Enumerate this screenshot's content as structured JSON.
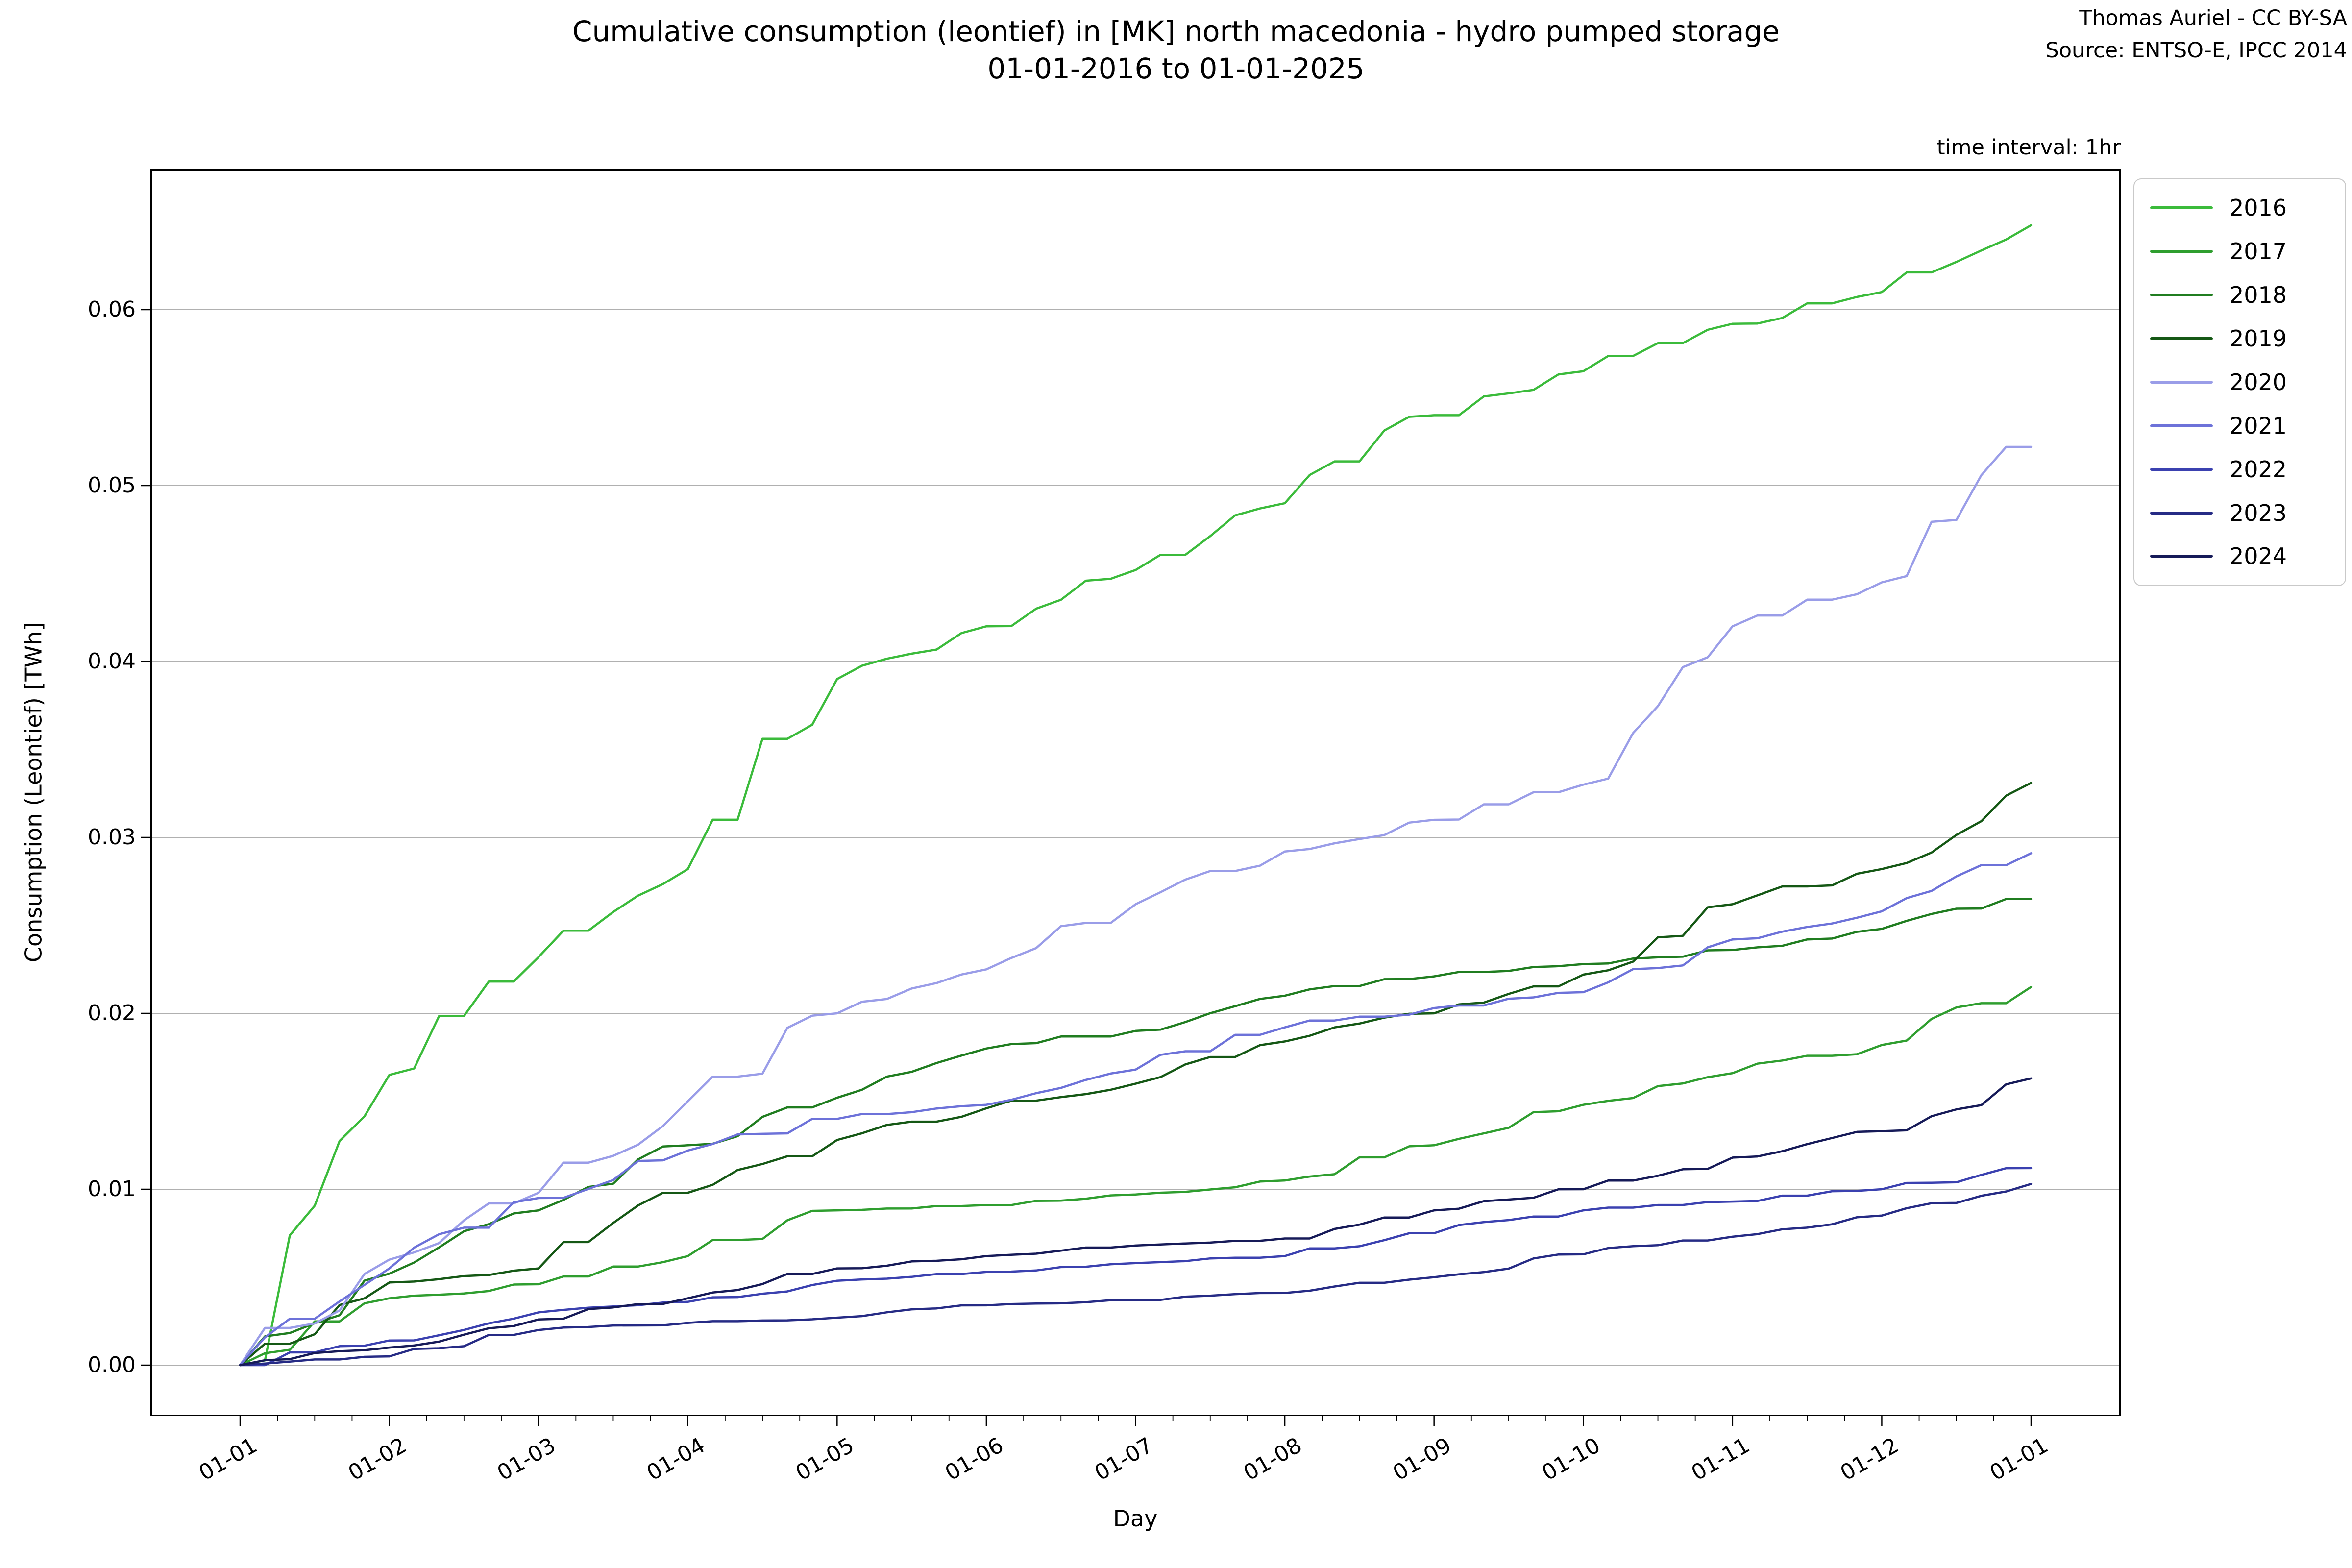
{
  "page": {
    "title_line1": "Cumulative consumption (leontief) in [MK] north macedonia - hydro pumped storage",
    "title_line2": "01-01-2016 to 01-01-2025",
    "attribution_line1": "Thomas Auriel - CC BY-SA",
    "attribution_line2": "Source: ENTSO-E, IPCC 2014",
    "time_interval_label": "time interval: 1hr"
  },
  "chart_data": {
    "type": "line",
    "title": "Cumulative consumption (leontief) in [MK] north macedonia - hydro pumped storage 01-01-2016 to 01-01-2025",
    "xlabel": "Day",
    "ylabel": "Consumption (Leontief) [TWh]",
    "x_tick_labels": [
      "01-01",
      "01-02",
      "01-03",
      "01-04",
      "01-05",
      "01-06",
      "01-07",
      "01-08",
      "01-09",
      "01-10",
      "01-11",
      "01-12",
      "01-01"
    ],
    "y_tick_labels": [
      "0.00",
      "0.01",
      "0.02",
      "0.03",
      "0.04",
      "0.05",
      "0.06"
    ],
    "y_tick_values": [
      0.0,
      0.01,
      0.02,
      0.03,
      0.04,
      0.05,
      0.06
    ],
    "ylim": [
      -0.0032,
      0.068
    ],
    "grid": true,
    "grid_color": "#b0b0b0",
    "legend_position": "upper right outside",
    "series": [
      {
        "name": "2016",
        "color": "#3bbb3b",
        "monthly_values": [
          0,
          0.0165,
          0.0232,
          0.0282,
          0.039,
          0.042,
          0.0452,
          0.049,
          0.054,
          0.0565,
          0.0592,
          0.061,
          0.0648
        ]
      },
      {
        "name": "2017",
        "color": "#2f9e2f",
        "monthly_values": [
          0,
          0.0038,
          0.0046,
          0.0062,
          0.0088,
          0.0091,
          0.0097,
          0.0105,
          0.0125,
          0.0148,
          0.0166,
          0.0182,
          0.0215
        ]
      },
      {
        "name": "2018",
        "color": "#207d20",
        "monthly_values": [
          0,
          0.0052,
          0.0088,
          0.0125,
          0.0152,
          0.018,
          0.019,
          0.021,
          0.0221,
          0.0228,
          0.0236,
          0.0248,
          0.0265
        ]
      },
      {
        "name": "2019",
        "color": "#155815",
        "monthly_values": [
          0,
          0.0047,
          0.0055,
          0.0098,
          0.0128,
          0.0146,
          0.016,
          0.0184,
          0.02,
          0.0222,
          0.0262,
          0.0282,
          0.0331
        ]
      },
      {
        "name": "2020",
        "color": "#9a9de8",
        "monthly_values": [
          0,
          0.006,
          0.0098,
          0.015,
          0.02,
          0.0225,
          0.0262,
          0.0292,
          0.031,
          0.033,
          0.042,
          0.0445,
          0.0522
        ]
      },
      {
        "name": "2021",
        "color": "#6d72d9",
        "monthly_values": [
          0,
          0.0055,
          0.0095,
          0.0122,
          0.014,
          0.0148,
          0.0168,
          0.0192,
          0.0203,
          0.0212,
          0.0242,
          0.0258,
          0.0291
        ]
      },
      {
        "name": "2022",
        "color": "#3b41b0",
        "monthly_values": [
          0,
          0.0014,
          0.003,
          0.0036,
          0.0048,
          0.0053,
          0.0058,
          0.0062,
          0.0075,
          0.0088,
          0.0093,
          0.01,
          0.0112
        ]
      },
      {
        "name": "2023",
        "color": "#262b85",
        "monthly_values": [
          0,
          0.0005,
          0.002,
          0.0024,
          0.0027,
          0.0034,
          0.0037,
          0.0041,
          0.005,
          0.0063,
          0.0073,
          0.0085,
          0.0103
        ]
      },
      {
        "name": "2024",
        "color": "#161a58",
        "monthly_values": [
          0,
          0.001,
          0.0026,
          0.0038,
          0.0055,
          0.0062,
          0.0068,
          0.0072,
          0.0088,
          0.01,
          0.0118,
          0.0133,
          0.0163
        ]
      }
    ]
  }
}
